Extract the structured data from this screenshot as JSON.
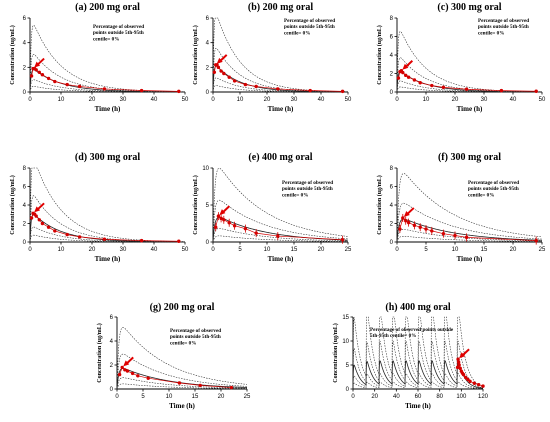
{
  "chart_data": [
    {
      "type": "line",
      "title": "(a) 200 mg oral",
      "xlabel": "Time (h)",
      "ylabel": "Concentration (ug/mL)",
      "annotation": [
        "Percentage of observed",
        "points outside 5th-95th",
        "centile= 0%"
      ],
      "xlim": [
        0,
        50
      ],
      "ylim": [
        0,
        6
      ],
      "xticks": [
        0,
        10,
        20,
        30,
        40,
        50
      ],
      "yticks": [
        0,
        2,
        4,
        6
      ],
      "observed": {
        "x": [
          0.5,
          1,
          1.5,
          2,
          3,
          4,
          6,
          8,
          12,
          16,
          24,
          36,
          48
        ],
        "y": [
          1.3,
          1.9,
          1.9,
          1.8,
          1.6,
          1.4,
          1.1,
          0.85,
          0.6,
          0.45,
          0.25,
          0.12,
          0.05
        ]
      }
    },
    {
      "type": "line",
      "title": "(b) 200 mg oral",
      "xlabel": "Time (h)",
      "ylabel": "Concentration (ug/mL)",
      "annotation": [
        "Percentage of observed",
        "points outside 5th-95th",
        "centile= 0%"
      ],
      "xlim": [
        0,
        50
      ],
      "ylim": [
        0,
        6
      ],
      "xticks": [
        0,
        10,
        20,
        30,
        40,
        50
      ],
      "yticks": [
        0,
        2,
        4,
        6
      ],
      "observed": {
        "x": [
          0.5,
          1,
          1.5,
          2,
          3,
          4,
          6,
          8,
          12,
          16,
          24,
          36,
          48
        ],
        "y": [
          1.6,
          2.2,
          2.2,
          2.0,
          1.7,
          1.5,
          1.2,
          0.9,
          0.6,
          0.45,
          0.25,
          0.12,
          0.05
        ]
      }
    },
    {
      "type": "line",
      "title": "(c) 300 mg oral",
      "xlabel": "Time (h)",
      "ylabel": "Concentration (ug/mL)",
      "annotation": [
        "Percentage of observed",
        "points outside 5th-95th",
        "centile= 0%"
      ],
      "xlim": [
        0,
        50
      ],
      "ylim": [
        0,
        8
      ],
      "xticks": [
        0,
        10,
        20,
        30,
        40,
        50
      ],
      "yticks": [
        0,
        2,
        4,
        6,
        8
      ],
      "observed": {
        "x": [
          0.5,
          1,
          1.5,
          2,
          3,
          4,
          6,
          8,
          12,
          16,
          24,
          36,
          48
        ],
        "y": [
          1.5,
          2.2,
          2.3,
          2.1,
          1.8,
          1.6,
          1.3,
          1.0,
          0.7,
          0.5,
          0.3,
          0.15,
          0.08
        ]
      }
    },
    {
      "type": "line",
      "title": "(d) 300 mg oral",
      "xlabel": "Time (h)",
      "ylabel": "Concentration (ug/mL)",
      "annotation": [],
      "xlim": [
        0,
        50
      ],
      "ylim": [
        0,
        8
      ],
      "xticks": [
        0,
        10,
        20,
        30,
        40,
        50
      ],
      "yticks": [
        0,
        2,
        4,
        6,
        8
      ],
      "observed": {
        "x": [
          0.5,
          1,
          1.5,
          2,
          3,
          4,
          6,
          8,
          12,
          16,
          24,
          36,
          48
        ],
        "y": [
          2.6,
          3.1,
          3.0,
          2.8,
          2.4,
          2.0,
          1.6,
          1.2,
          0.8,
          0.55,
          0.3,
          0.15,
          0.08
        ]
      }
    },
    {
      "type": "line",
      "title": "(e) 400 mg oral",
      "xlabel": "Time (h)",
      "ylabel": "Concentration (ug/mL)",
      "annotation": [
        "Percentage of observed",
        "points outside 5th-95th",
        "centile= 0%"
      ],
      "xlim": [
        0,
        25
      ],
      "ylim": [
        0,
        10
      ],
      "xticks": [
        0,
        5,
        10,
        15,
        20,
        25
      ],
      "yticks": [
        0,
        5,
        10
      ],
      "observed": {
        "x": [
          0.5,
          1,
          1.5,
          2,
          3,
          4,
          6,
          8,
          12,
          24
        ],
        "y": [
          2.0,
          3.5,
          3.2,
          3.0,
          2.6,
          2.2,
          1.8,
          1.2,
          0.8,
          0.3
        ]
      }
    },
    {
      "type": "line",
      "title": "(f) 300 mg oral",
      "xlabel": "Time (h)",
      "ylabel": "Concentration (ug/mL)",
      "annotation": [
        "Percentage of observed",
        "points outside 5th-95th",
        "centile= 0%"
      ],
      "xlim": [
        0,
        25
      ],
      "ylim": [
        0,
        8
      ],
      "xticks": [
        0,
        5,
        10,
        15,
        20,
        25
      ],
      "yticks": [
        0,
        2,
        4,
        6,
        8
      ],
      "observed": {
        "x": [
          0.5,
          1,
          1.5,
          2,
          3,
          4,
          5,
          6,
          8,
          10,
          12,
          24
        ],
        "y": [
          1.4,
          2.6,
          2.3,
          2.1,
          1.8,
          1.6,
          1.4,
          1.2,
          0.9,
          0.7,
          0.5,
          0.15
        ]
      }
    },
    {
      "type": "line",
      "title": "(g) 200 mg oral",
      "xlabel": "Time (h)",
      "ylabel": "Concentration (ug/mL)",
      "annotation": [
        "Percentage of observed",
        "points outside 5th-95th",
        "centile= 0%"
      ],
      "xlim": [
        0,
        25
      ],
      "ylim": [
        0,
        6
      ],
      "xticks": [
        0,
        5,
        10,
        15,
        20,
        25
      ],
      "yticks": [
        0,
        2,
        4,
        6
      ],
      "observed": {
        "x": [
          0.5,
          1,
          1.5,
          2,
          3,
          4,
          6,
          12,
          16,
          22
        ],
        "y": [
          1.2,
          1.8,
          1.6,
          1.5,
          1.3,
          1.1,
          0.9,
          0.5,
          0.3,
          0.12
        ]
      }
    },
    {
      "type": "line",
      "title": "(h) 400 mg oral",
      "xlabel": "Time (h)",
      "ylabel": "Concentration (ug/mL)",
      "annotation": [
        "Percentage of observed points outside",
        "5th-95th centile= 0%"
      ],
      "xlim": [
        0,
        120
      ],
      "ylim": [
        0,
        15
      ],
      "xticks": [
        0,
        20,
        40,
        60,
        80,
        100,
        120
      ],
      "yticks": [
        0,
        5,
        10,
        15
      ],
      "dose_interval": 12,
      "n_doses": 9,
      "observed": {
        "x": [
          96.5,
          97,
          97.5,
          98,
          99,
          100,
          101,
          102,
          104,
          106,
          108,
          112,
          116,
          120
        ],
        "y": [
          4.5,
          6.2,
          5.6,
          5.0,
          4.3,
          3.7,
          3.3,
          3.0,
          2.4,
          2.0,
          1.6,
          1.2,
          0.9,
          0.6
        ]
      }
    }
  ]
}
